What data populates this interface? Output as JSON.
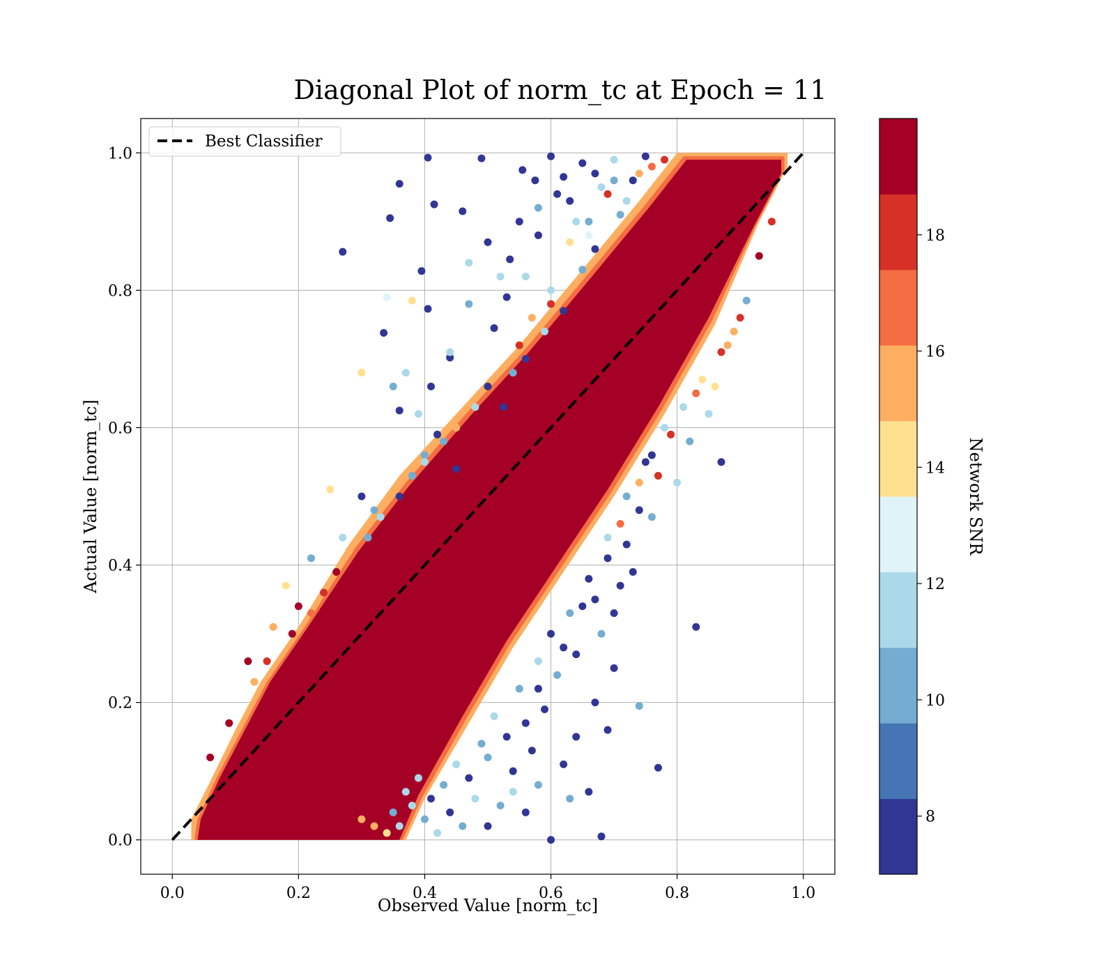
{
  "chart_data": {
    "type": "scatter",
    "title": "Diagonal Plot of norm_tc at Epoch = 11",
    "xlabel": "Observed Value [norm_tc]",
    "ylabel": "Actual Value [norm_tc]",
    "xlim": [
      -0.05,
      1.05
    ],
    "ylim": [
      -0.05,
      1.05
    ],
    "x_ticks": [
      "0.0",
      "0.2",
      "0.4",
      "0.6",
      "0.8",
      "1.0"
    ],
    "y_ticks": [
      "0.0",
      "0.2",
      "0.4",
      "0.6",
      "0.8",
      "1.0"
    ],
    "grid": true,
    "legend": {
      "placement": "upper-left",
      "entries": [
        {
          "label": "Best Classifier",
          "style": "dashed",
          "color": "#000000"
        }
      ]
    },
    "reference_line": {
      "x": [
        0.0,
        1.0
      ],
      "y": [
        0.0,
        1.0
      ]
    },
    "colorbar": {
      "label": "Network SNR",
      "range": [
        7,
        20
      ],
      "ticks": [
        "8",
        "10",
        "12",
        "14",
        "16",
        "18"
      ],
      "tick_values": [
        8,
        10,
        12,
        14,
        16,
        18
      ],
      "colors": [
        "#313695",
        "#4575b4",
        "#74add1",
        "#abd9e9",
        "#e0f3f8",
        "#fee090",
        "#fdae61",
        "#f46d43",
        "#d73027",
        "#a50026"
      ]
    },
    "series": [
      {
        "description_points": "outliers above diagonal",
        "points": [
          [
            0.405,
            0.993,
            7.5
          ],
          [
            0.49,
            0.992,
            7.5
          ],
          [
            0.36,
            0.955,
            7.5
          ],
          [
            0.415,
            0.925,
            7.5
          ],
          [
            0.345,
            0.905,
            7.5
          ],
          [
            0.27,
            0.856,
            7.5
          ],
          [
            0.395,
            0.828,
            7.5
          ],
          [
            0.405,
            0.773,
            7.5
          ],
          [
            0.335,
            0.738,
            7.5
          ],
          [
            0.44,
            0.702,
            7.5
          ],
          [
            0.36,
            0.625,
            7.5
          ],
          [
            0.51,
            0.745,
            7.5
          ],
          [
            0.46,
            0.915,
            7.5
          ],
          [
            0.5,
            0.87,
            7.5
          ],
          [
            0.535,
            0.845,
            7.5
          ],
          [
            0.555,
            0.975,
            7.5
          ],
          [
            0.575,
            0.96,
            7.5
          ],
          [
            0.6,
            0.995,
            7.5
          ],
          [
            0.62,
            0.965,
            7.5
          ],
          [
            0.63,
            0.93,
            7.5
          ],
          [
            0.65,
            0.985,
            7.5
          ],
          [
            0.58,
            0.88,
            7.5
          ],
          [
            0.55,
            0.9,
            7.5
          ],
          [
            0.53,
            0.79,
            7.5
          ],
          [
            0.525,
            0.63,
            7.5
          ],
          [
            0.42,
            0.59,
            7.5
          ],
          [
            0.35,
            0.66,
            10
          ],
          [
            0.37,
            0.68,
            11.5
          ],
          [
            0.4,
            0.56,
            10
          ],
          [
            0.45,
            0.54,
            7.5
          ],
          [
            0.3,
            0.5,
            7.5
          ],
          [
            0.32,
            0.48,
            10
          ],
          [
            0.27,
            0.44,
            12
          ],
          [
            0.22,
            0.41,
            10
          ],
          [
            0.18,
            0.37,
            14
          ],
          [
            0.16,
            0.31,
            15
          ],
          [
            0.12,
            0.26,
            19
          ],
          [
            0.09,
            0.17,
            19
          ],
          [
            0.06,
            0.12,
            19
          ],
          [
            0.2,
            0.34,
            19
          ],
          [
            0.25,
            0.51,
            14
          ],
          [
            0.3,
            0.68,
            14
          ],
          [
            0.34,
            0.79,
            13
          ],
          [
            0.38,
            0.785,
            14
          ],
          [
            0.47,
            0.84,
            11
          ],
          [
            0.56,
            0.82,
            12
          ],
          [
            0.6,
            0.8,
            11
          ],
          [
            0.64,
            0.9,
            12
          ],
          [
            0.66,
            0.88,
            13
          ],
          [
            0.68,
            0.95,
            11
          ],
          [
            0.7,
            0.99,
            12
          ],
          [
            0.72,
            0.93,
            11
          ],
          [
            0.74,
            0.97,
            15
          ],
          [
            0.76,
            0.98,
            17
          ],
          [
            0.78,
            0.99,
            18
          ],
          [
            0.69,
            0.94,
            18
          ],
          [
            0.73,
            0.96,
            7.5
          ],
          [
            0.71,
            0.91,
            10
          ],
          [
            0.67,
            0.86,
            7.5
          ],
          [
            0.65,
            0.83,
            10
          ],
          [
            0.62,
            0.77,
            7.5
          ],
          [
            0.59,
            0.74,
            12
          ],
          [
            0.56,
            0.7,
            7.5
          ],
          [
            0.54,
            0.68,
            10
          ],
          [
            0.5,
            0.66,
            7.5
          ],
          [
            0.48,
            0.63,
            12
          ],
          [
            0.45,
            0.6,
            15
          ],
          [
            0.43,
            0.58,
            10
          ],
          [
            0.4,
            0.55,
            12
          ],
          [
            0.38,
            0.53,
            10
          ],
          [
            0.36,
            0.5,
            7.5
          ],
          [
            0.33,
            0.47,
            12
          ],
          [
            0.31,
            0.44,
            10
          ],
          [
            0.28,
            0.42,
            16
          ],
          [
            0.26,
            0.39,
            19
          ],
          [
            0.24,
            0.36,
            18
          ],
          [
            0.22,
            0.33,
            17
          ],
          [
            0.19,
            0.3,
            19
          ],
          [
            0.15,
            0.26,
            18
          ],
          [
            0.13,
            0.23,
            16
          ],
          [
            0.58,
            0.92,
            10
          ],
          [
            0.61,
            0.94,
            7.5
          ],
          [
            0.63,
            0.87,
            14
          ],
          [
            0.66,
            0.9,
            10
          ],
          [
            0.7,
            0.96,
            10
          ],
          [
            0.75,
            0.995,
            7.5
          ],
          [
            0.67,
            0.97,
            7.5
          ],
          [
            0.52,
            0.82,
            12
          ],
          [
            0.47,
            0.78,
            10
          ],
          [
            0.44,
            0.71,
            12
          ],
          [
            0.41,
            0.66,
            7.5
          ],
          [
            0.39,
            0.62,
            12
          ],
          [
            0.55,
            0.72,
            18
          ],
          [
            0.57,
            0.76,
            16
          ],
          [
            0.6,
            0.78,
            18
          ]
        ]
      },
      {
        "description_points": "outliers below diagonal",
        "points": [
          [
            0.91,
            0.785,
            10
          ],
          [
            0.87,
            0.55,
            7.5
          ],
          [
            0.83,
            0.31,
            7.5
          ],
          [
            0.77,
            0.105,
            7.5
          ],
          [
            0.74,
            0.195,
            10
          ],
          [
            0.7,
            0.25,
            7.5
          ],
          [
            0.69,
            0.16,
            7.5
          ],
          [
            0.67,
            0.2,
            7.5
          ],
          [
            0.68,
            0.005,
            7.5
          ],
          [
            0.66,
            0.07,
            7.5
          ],
          [
            0.63,
            0.06,
            10
          ],
          [
            0.6,
            0.0,
            7.5
          ],
          [
            0.62,
            0.11,
            7.5
          ],
          [
            0.64,
            0.15,
            7.5
          ],
          [
            0.59,
            0.19,
            7.5
          ],
          [
            0.65,
            0.34,
            7.5
          ],
          [
            0.69,
            0.41,
            7.5
          ],
          [
            0.74,
            0.48,
            7.5
          ],
          [
            0.72,
            0.43,
            7.5
          ],
          [
            0.76,
            0.56,
            7.5
          ],
          [
            0.71,
            0.37,
            7.5
          ],
          [
            0.67,
            0.35,
            7.5
          ],
          [
            0.62,
            0.28,
            7.5
          ],
          [
            0.58,
            0.22,
            7.5
          ],
          [
            0.56,
            0.17,
            7.5
          ],
          [
            0.54,
            0.1,
            7.5
          ],
          [
            0.52,
            0.05,
            10
          ],
          [
            0.5,
            0.02,
            7.5
          ],
          [
            0.48,
            0.06,
            12
          ],
          [
            0.46,
            0.02,
            10
          ],
          [
            0.44,
            0.04,
            7.5
          ],
          [
            0.42,
            0.01,
            12
          ],
          [
            0.4,
            0.03,
            10
          ],
          [
            0.38,
            0.05,
            11
          ],
          [
            0.36,
            0.02,
            12
          ],
          [
            0.34,
            0.01,
            14
          ],
          [
            0.32,
            0.02,
            15
          ],
          [
            0.3,
            0.03,
            16
          ],
          [
            0.5,
            0.12,
            10
          ],
          [
            0.53,
            0.15,
            7.5
          ],
          [
            0.55,
            0.22,
            10
          ],
          [
            0.58,
            0.26,
            12
          ],
          [
            0.6,
            0.3,
            7.5
          ],
          [
            0.63,
            0.33,
            10
          ],
          [
            0.66,
            0.38,
            7.5
          ],
          [
            0.69,
            0.44,
            12
          ],
          [
            0.72,
            0.5,
            10
          ],
          [
            0.75,
            0.55,
            7.5
          ],
          [
            0.78,
            0.6,
            11
          ],
          [
            0.81,
            0.63,
            12
          ],
          [
            0.84,
            0.67,
            14
          ],
          [
            0.88,
            0.72,
            16
          ],
          [
            0.9,
            0.76,
            18
          ],
          [
            0.93,
            0.85,
            19
          ],
          [
            0.95,
            0.9,
            18
          ],
          [
            0.47,
            0.09,
            7.5
          ],
          [
            0.49,
            0.14,
            10
          ],
          [
            0.51,
            0.18,
            12
          ],
          [
            0.57,
            0.13,
            7.5
          ],
          [
            0.61,
            0.24,
            10
          ],
          [
            0.64,
            0.27,
            7.5
          ],
          [
            0.54,
            0.07,
            11
          ],
          [
            0.56,
            0.04,
            7.5
          ],
          [
            0.58,
            0.08,
            10
          ],
          [
            0.45,
            0.11,
            12
          ],
          [
            0.43,
            0.08,
            10
          ],
          [
            0.41,
            0.06,
            7.5
          ],
          [
            0.39,
            0.09,
            11
          ],
          [
            0.37,
            0.07,
            12
          ],
          [
            0.35,
            0.04,
            10
          ],
          [
            0.68,
            0.3,
            10
          ],
          [
            0.7,
            0.33,
            7.5
          ],
          [
            0.73,
            0.39,
            7.5
          ],
          [
            0.76,
            0.47,
            10
          ],
          [
            0.8,
            0.52,
            12
          ],
          [
            0.82,
            0.58,
            10
          ],
          [
            0.85,
            0.62,
            12
          ],
          [
            0.86,
            0.66,
            14
          ],
          [
            0.79,
            0.59,
            18
          ],
          [
            0.83,
            0.65,
            17
          ],
          [
            0.87,
            0.71,
            18
          ],
          [
            0.89,
            0.74,
            16
          ],
          [
            0.77,
            0.53,
            18
          ],
          [
            0.74,
            0.52,
            16
          ],
          [
            0.71,
            0.46,
            17
          ]
        ]
      }
    ]
  }
}
